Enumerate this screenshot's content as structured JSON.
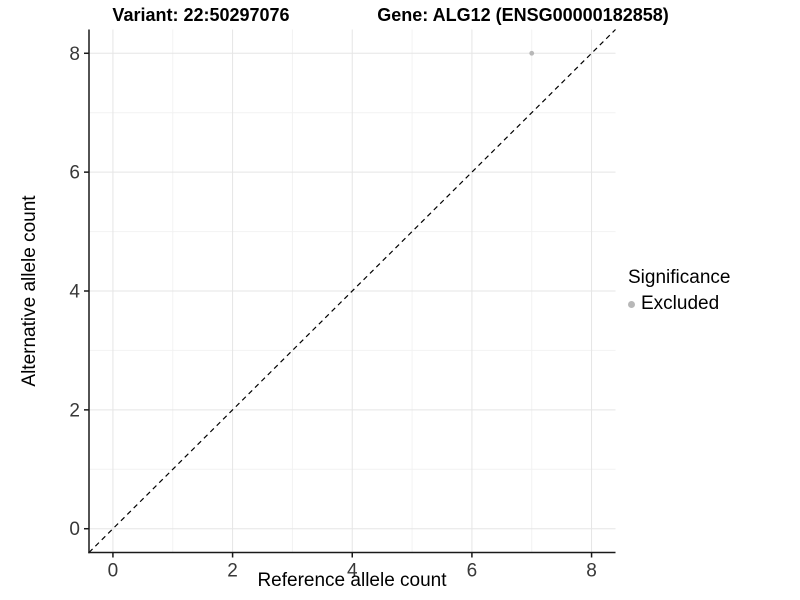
{
  "header": {
    "variant_title": "Variant: 22:50297076",
    "gene_title": "Gene: ALG12 (ENSG00000182858)"
  },
  "chart_data": {
    "type": "scatter",
    "title_left": "Variant: 22:50297076",
    "title_right": "Gene: ALG12 (ENSG00000182858)",
    "xlabel": "Reference allele count",
    "ylabel": "Alternative allele count",
    "x_ticks": [
      0,
      2,
      4,
      6,
      8
    ],
    "y_ticks": [
      0,
      2,
      4,
      6,
      8
    ],
    "x_minor_ticks": [
      1,
      3,
      5,
      7
    ],
    "y_minor_ticks": [
      1,
      3,
      5,
      7
    ],
    "xlim": [
      -0.4,
      8.4
    ],
    "ylim": [
      -0.4,
      8.4
    ],
    "grid": true,
    "points": [
      {
        "x": 7,
        "y": 8,
        "series": "Excluded"
      }
    ],
    "reference_line": {
      "type": "identity",
      "slope": 1,
      "intercept": 0,
      "style": "dashed",
      "color": "#000000"
    },
    "legend": {
      "position": "right",
      "title": "Significance",
      "entries": [
        {
          "label": "Excluded",
          "color": "#b8b8b8"
        }
      ]
    },
    "colors": {
      "grid_major": "#e5e5e5",
      "grid_minor": "#f2f2f2",
      "axis": "#1a1a1a",
      "tick_label": "#383838",
      "point": "#b8b8b8",
      "background": "#ffffff"
    }
  }
}
